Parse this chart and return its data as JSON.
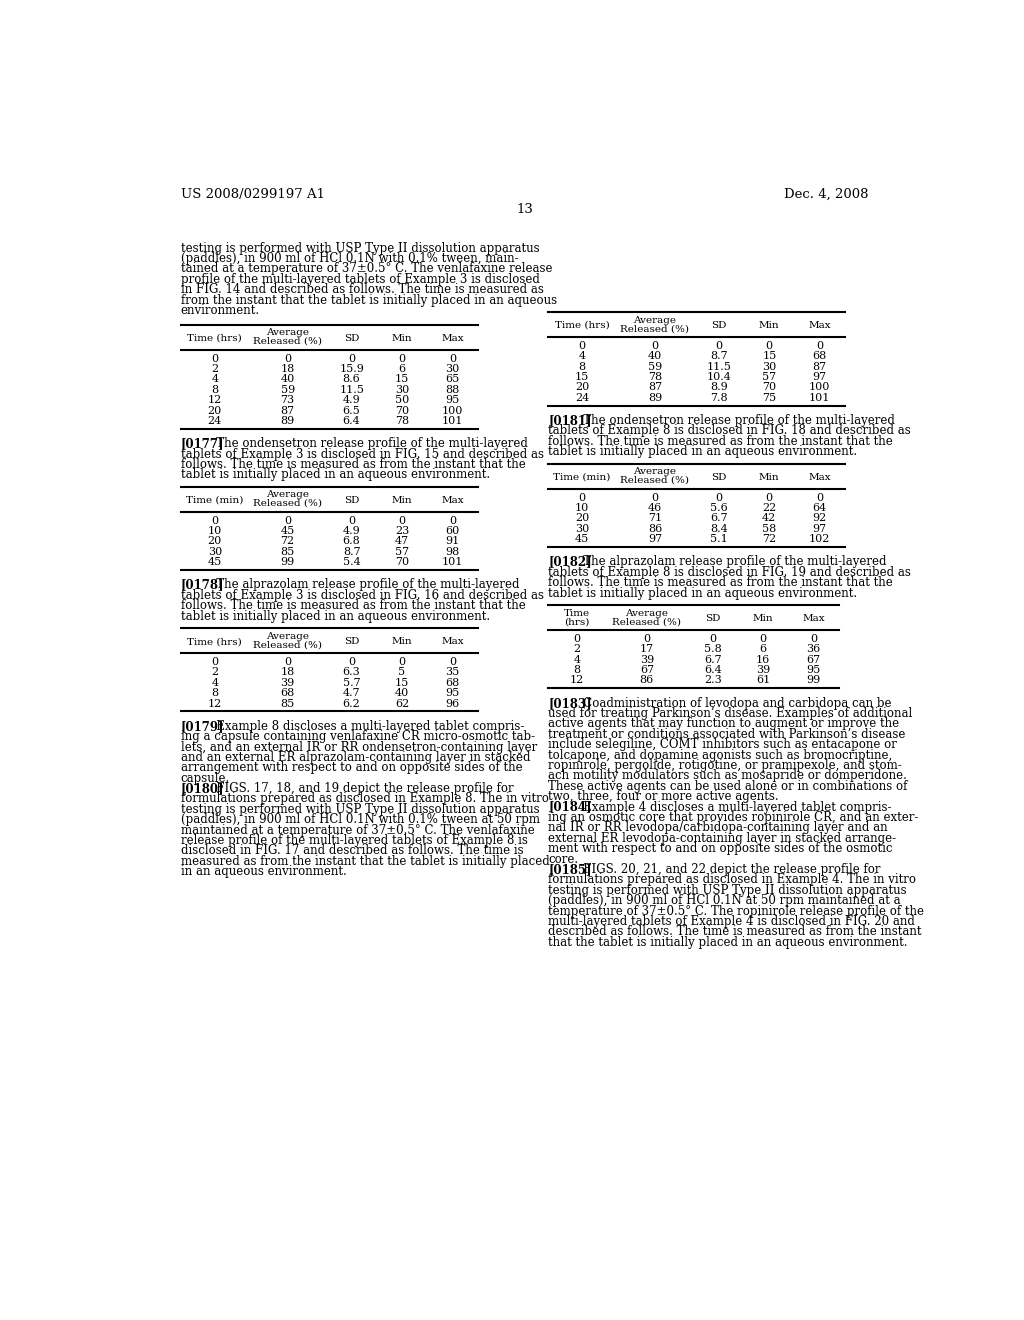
{
  "header_left": "US 2008/0299197 A1",
  "header_right": "Dec. 4, 2008",
  "page_number": "13",
  "bg_color": "#ffffff",
  "left_column": {
    "intro_text": [
      "testing is performed with USP Type II dissolution apparatus",
      "(paddles), in 900 ml of HCl 0.1N with 0.1% tween, main-",
      "tained at a temperature of 37±0.5° C. The venlafaxine release",
      "profile of the multi-layered tablets of Example 3 is disclosed",
      "in FIG. 14 and described as follows. The time is measured as",
      "from the instant that the tablet is initially placed in an aqueous",
      "environment."
    ],
    "table1": {
      "col_headers": [
        "Time (hrs)",
        "Average\nReleased (%)",
        "SD",
        "Min",
        "Max"
      ],
      "rows": [
        [
          "0",
          "0",
          "0",
          "0",
          "0"
        ],
        [
          "2",
          "18",
          "15.9",
          "6",
          "30"
        ],
        [
          "4",
          "40",
          "8.6",
          "15",
          "65"
        ],
        [
          "8",
          "59",
          "11.5",
          "30",
          "88"
        ],
        [
          "12",
          "73",
          "4.9",
          "50",
          "95"
        ],
        [
          "20",
          "87",
          "6.5",
          "70",
          "100"
        ],
        [
          "24",
          "89",
          "6.4",
          "78",
          "101"
        ]
      ]
    },
    "para_0177": [
      [
        "[0177]",
        "bold",
        "   The ondensetron release profile of the multi-layered"
      ],
      [
        "",
        "",
        "tablets of Example 3 is disclosed in FIG. 15 and described as"
      ],
      [
        "",
        "",
        "follows. The time is measured as from the instant that the"
      ],
      [
        "",
        "",
        "tablet is initially placed in an aqueous environment."
      ]
    ],
    "table2": {
      "col_headers": [
        "Time (min)",
        "Average\nReleased (%)",
        "SD",
        "Min",
        "Max"
      ],
      "rows": [
        [
          "0",
          "0",
          "0",
          "0",
          "0"
        ],
        [
          "10",
          "45",
          "4.9",
          "23",
          "60"
        ],
        [
          "20",
          "72",
          "6.8",
          "47",
          "91"
        ],
        [
          "30",
          "85",
          "8.7",
          "57",
          "98"
        ],
        [
          "45",
          "99",
          "5.4",
          "70",
          "101"
        ]
      ]
    },
    "para_0178": [
      [
        "[0178]",
        "bold",
        "   The alprazolam release profile of the multi-layered"
      ],
      [
        "",
        "",
        "tablets of Example 3 is disclosed in FIG. 16 and described as"
      ],
      [
        "",
        "",
        "follows. The time is measured as from the instant that the"
      ],
      [
        "",
        "",
        "tablet is initially placed in an aqueous environment."
      ]
    ],
    "table3": {
      "col_headers": [
        "Time (hrs)",
        "Average\nReleased (%)",
        "SD",
        "Min",
        "Max"
      ],
      "rows": [
        [
          "0",
          "0",
          "0",
          "0",
          "0"
        ],
        [
          "2",
          "18",
          "6.3",
          "5",
          "35"
        ],
        [
          "4",
          "39",
          "5.7",
          "15",
          "68"
        ],
        [
          "8",
          "68",
          "4.7",
          "40",
          "95"
        ],
        [
          "12",
          "85",
          "6.2",
          "62",
          "96"
        ]
      ]
    },
    "para_0179": [
      [
        "[0179]",
        "bold",
        "   Example 8 discloses a multi-layered tablet compris-"
      ],
      [
        "",
        "",
        "ing a capsule containing venlafaxine CR micro-osmotic tab-"
      ],
      [
        "",
        "",
        "lets, and an external IR or RR ondensetron-containing layer"
      ],
      [
        "",
        "",
        "and an external ER alprazolam-containing layer in stacked"
      ],
      [
        "",
        "",
        "arrangement with respect to and on opposite sides of the"
      ],
      [
        "",
        "",
        "capsule."
      ]
    ],
    "para_0180": [
      [
        "[0180]",
        "bold",
        "   FIGS. 17, 18, and 19 depict the release profile for"
      ],
      [
        "",
        "",
        "formulations prepared as disclosed in Example 8. The in vitro"
      ],
      [
        "",
        "",
        "testing is performed with USP Type II dissolution apparatus"
      ],
      [
        "",
        "",
        "(paddles), in 900 ml of HCl 0.1N with 0.1% tween at 50 rpm"
      ],
      [
        "",
        "",
        "maintained at a temperature of 37±0.5° C. The venlafaxine"
      ],
      [
        "",
        "",
        "release profile of the multi-layered tablets of Example 8 is"
      ],
      [
        "",
        "",
        "disclosed in FIG. 17 and described as follows. The time is"
      ],
      [
        "",
        "",
        "measured as from the instant that the tablet is initially placed"
      ],
      [
        "",
        "",
        "in an aqueous environment."
      ]
    ]
  },
  "right_column": {
    "table4": {
      "col_headers": [
        "Time (hrs)",
        "Average\nReleased (%)",
        "SD",
        "Min",
        "Max"
      ],
      "rows": [
        [
          "0",
          "0",
          "0",
          "0",
          "0"
        ],
        [
          "4",
          "40",
          "8.7",
          "15",
          "68"
        ],
        [
          "8",
          "59",
          "11.5",
          "30",
          "87"
        ],
        [
          "15",
          "78",
          "10.4",
          "57",
          "97"
        ],
        [
          "20",
          "87",
          "8.9",
          "70",
          "100"
        ],
        [
          "24",
          "89",
          "7.8",
          "75",
          "101"
        ]
      ]
    },
    "para_0181": [
      [
        "[0181]",
        "bold",
        "   The ondensetron release profile of the multi-layered"
      ],
      [
        "",
        "",
        "tablets of Example 8 is disclosed in FIG. 18 and described as"
      ],
      [
        "",
        "",
        "follows. The time is measured as from the instant that the"
      ],
      [
        "",
        "",
        "tablet is initially placed in an aqueous environment."
      ]
    ],
    "table5": {
      "col_headers": [
        "Time (min)",
        "Average\nReleased (%)",
        "SD",
        "Min",
        "Max"
      ],
      "rows": [
        [
          "0",
          "0",
          "0",
          "0",
          "0"
        ],
        [
          "10",
          "46",
          "5.6",
          "22",
          "64"
        ],
        [
          "20",
          "71",
          "6.7",
          "42",
          "92"
        ],
        [
          "30",
          "86",
          "8.4",
          "58",
          "97"
        ],
        [
          "45",
          "97",
          "5.1",
          "72",
          "102"
        ]
      ]
    },
    "para_0182": [
      [
        "[0182]",
        "bold",
        "   The alprazolam release profile of the multi-layered"
      ],
      [
        "",
        "",
        "tablets of Example 8 is disclosed in FIG. 19 and described as"
      ],
      [
        "",
        "",
        "follows. The time is measured as from the instant that the"
      ],
      [
        "",
        "",
        "tablet is initially placed in an aqueous environment."
      ]
    ],
    "table6": {
      "col_headers": [
        "Time\n(hrs)",
        "Average\nReleased (%)",
        "SD",
        "Min",
        "Max"
      ],
      "rows": [
        [
          "0",
          "0",
          "0",
          "0",
          "0"
        ],
        [
          "2",
          "17",
          "5.8",
          "6",
          "36"
        ],
        [
          "4",
          "39",
          "6.7",
          "16",
          "67"
        ],
        [
          "8",
          "67",
          "6.4",
          "39",
          "95"
        ],
        [
          "12",
          "86",
          "2.3",
          "61",
          "99"
        ]
      ]
    },
    "para_0183": [
      [
        "[0183]",
        "bold",
        "   Coadministration of levodopa and carbidopa can be"
      ],
      [
        "",
        "",
        "used for treating Parkinson’s disease. Examples of additional"
      ],
      [
        "",
        "",
        "active agents that may function to augment or improve the"
      ],
      [
        "",
        "",
        "treatment or conditions associated with Parkinson’s disease"
      ],
      [
        "",
        "",
        "include selegiline, COMT inhibitors such as entacapone or"
      ],
      [
        "",
        "",
        "tolcapone, and dopamine agonists such as bromocriptine,"
      ],
      [
        "",
        "",
        "ropinirole, pergolide, rotigotine, or pramipexole, and stom-"
      ],
      [
        "",
        "",
        "ach motility modulators such as mosapride or domperidone."
      ],
      [
        "",
        "",
        "These active agents can be used alone or in combinations of"
      ],
      [
        "",
        "",
        "two, three, four or more active agents."
      ]
    ],
    "para_0184": [
      [
        "[0184]",
        "bold",
        "   Example 4 discloses a multi-layered tablet compris-"
      ],
      [
        "",
        "",
        "ing an osmotic core that provides ropinirole CR, and an exter-"
      ],
      [
        "",
        "",
        "nal IR or RR levodopa/carbidopa-containing layer and an"
      ],
      [
        "",
        "",
        "external ER levodopa-containing layer in stacked arrange-"
      ],
      [
        "",
        "",
        "ment with respect to and on opposite sides of the osmotic"
      ],
      [
        "",
        "",
        "core."
      ]
    ],
    "para_0185": [
      [
        "[0185]",
        "bold",
        "   FIGS. 20, 21, and 22 depict the release profile for"
      ],
      [
        "",
        "",
        "formulations prepared as disclosed in Example 4. The in vitro"
      ],
      [
        "",
        "",
        "testing is performed with USP Type II dissolution apparatus"
      ],
      [
        "",
        "",
        "(paddles), in 900 ml of HCl 0.1N at 50 rpm maintained at a"
      ],
      [
        "",
        "",
        "temperature of 37±0.5° C. The ropinirole release profile of the"
      ],
      [
        "",
        "",
        "multi-layered tablets of Example 4 is disclosed in FIG. 20 and"
      ],
      [
        "",
        "",
        "described as follows. The time is measured as from the instant"
      ],
      [
        "",
        "",
        "that the tablet is initially placed in an aqueous environment."
      ]
    ]
  }
}
